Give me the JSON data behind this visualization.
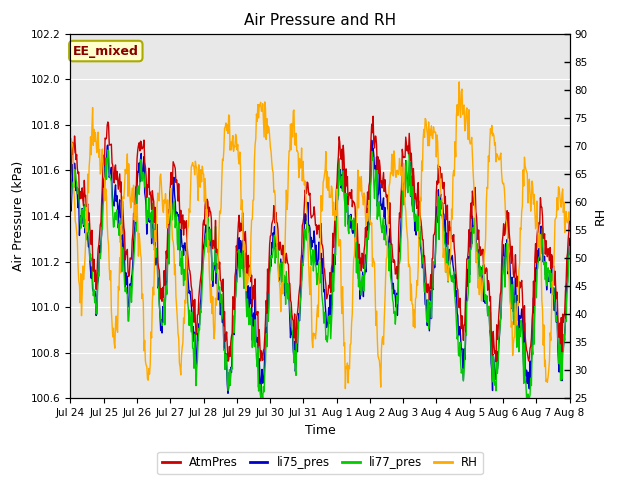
{
  "title": "Air Pressure and RH",
  "xlabel": "Time",
  "ylabel_left": "Air Pressure (kPa)",
  "ylabel_right": "RH",
  "annotation_text": "EE_mixed",
  "ylim_left": [
    100.6,
    102.2
  ],
  "ylim_right": [
    25,
    90
  ],
  "yticks_left": [
    100.6,
    100.8,
    101.0,
    101.2,
    101.4,
    101.6,
    101.8,
    102.0,
    102.2
  ],
  "yticks_right": [
    25,
    30,
    35,
    40,
    45,
    50,
    55,
    60,
    65,
    70,
    75,
    80,
    85,
    90
  ],
  "colors": {
    "AtmPres": "#cc0000",
    "li75_pres": "#0000cc",
    "li77_pres": "#00cc00",
    "RH": "#ffaa00",
    "background": "#e8e8e8",
    "annotation_bg": "#ffffcc",
    "annotation_border": "#aaaa00",
    "annotation_text": "#880000",
    "grid": "#ffffff"
  },
  "legend": [
    "AtmPres",
    "li75_pres",
    "li77_pres",
    "RH"
  ],
  "xticklabels": [
    "Jul 24",
    "Jul 25",
    "Jul 26",
    "Jul 27",
    "Jul 28",
    "Jul 29",
    "Jul 30",
    "Jul 31",
    "Aug 1",
    "Aug 2",
    "Aug 3",
    "Aug 4",
    "Aug 5",
    "Aug 6",
    "Aug 7",
    "Aug 8"
  ],
  "seed": 42,
  "n_points": 720,
  "title_fontsize": 11,
  "label_fontsize": 9,
  "tick_fontsize": 7.5,
  "legend_fontsize": 8.5
}
